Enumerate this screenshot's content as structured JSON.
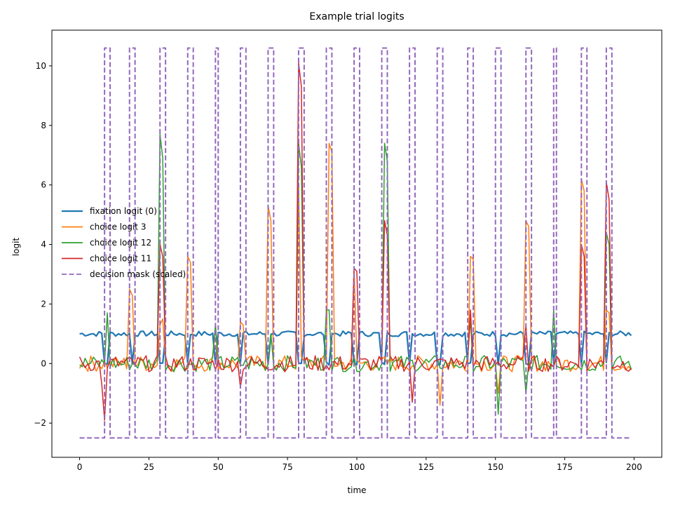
{
  "chart_data": {
    "type": "line",
    "title": "Example trial logits",
    "xlabel": "time",
    "ylabel": "logit",
    "xlim": [
      -10,
      210
    ],
    "ylim": [
      -3.15,
      11.2
    ],
    "xticks": [
      0,
      25,
      50,
      75,
      100,
      125,
      150,
      175,
      200
    ],
    "yticks": [
      -2,
      0,
      2,
      4,
      6,
      8,
      10
    ],
    "ytick_labels": [
      "−2",
      "0",
      "2",
      "4",
      "6",
      "8",
      "10"
    ],
    "grid": false,
    "legend_position": "center-left",
    "x": {
      "start": 0,
      "end": 199,
      "step": 1
    },
    "colors": {
      "fixation": "#1f77b4",
      "choice3": "#ff7f0e",
      "choice12": "#2ca02c",
      "choice11": "#d62728",
      "mask": "#9467bd"
    },
    "series": [
      {
        "name": "fixation logit (0)",
        "color": "#1f77b4",
        "style": "solid",
        "baseline": 1.0,
        "dips": [
          9,
          10,
          19,
          29,
          30,
          39,
          49,
          58,
          68,
          79,
          80,
          89,
          90,
          99,
          100,
          109,
          110,
          119,
          129,
          130,
          140,
          141,
          151,
          161,
          162,
          171,
          181,
          190
        ],
        "dip_value": 0.0
      },
      {
        "name": "choice logit 3",
        "color": "#ff7f0e",
        "style": "solid",
        "spikes": [
          [
            18,
            2.5
          ],
          [
            19,
            2.3
          ],
          [
            29,
            1.3
          ],
          [
            30,
            1.5
          ],
          [
            39,
            3.6
          ],
          [
            40,
            3.4
          ],
          [
            49,
            1.3
          ],
          [
            58,
            1.4
          ],
          [
            59,
            1.3
          ],
          [
            68,
            5.3
          ],
          [
            69,
            4.8
          ],
          [
            79,
            6.0
          ],
          [
            90,
            7.4
          ],
          [
            91,
            7.1
          ],
          [
            99,
            3.2
          ],
          [
            130,
            -1.4
          ],
          [
            141,
            3.6
          ],
          [
            142,
            3.5
          ],
          [
            151,
            -1.0
          ],
          [
            161,
            4.8
          ],
          [
            162,
            4.6
          ],
          [
            181,
            6.2
          ],
          [
            182,
            5.8
          ],
          [
            190,
            1.8
          ],
          [
            191,
            1.7
          ]
        ]
      },
      {
        "name": "choice logit 12",
        "color": "#2ca02c",
        "style": "solid",
        "spikes": [
          [
            10,
            1.7
          ],
          [
            29,
            7.7
          ],
          [
            30,
            6.9
          ],
          [
            49,
            1.3
          ],
          [
            69,
            1.0
          ],
          [
            79,
            7.4
          ],
          [
            80,
            6.6
          ],
          [
            89,
            1.8
          ],
          [
            90,
            1.8
          ],
          [
            110,
            7.4
          ],
          [
            111,
            6.8
          ],
          [
            141,
            1.5
          ],
          [
            151,
            -1.7
          ],
          [
            161,
            -1.0
          ],
          [
            171,
            1.8
          ],
          [
            190,
            4.4
          ],
          [
            191,
            4.0
          ]
        ]
      },
      {
        "name": "choice logit 11",
        "color": "#d62728",
        "style": "solid",
        "spikes": [
          [
            8,
            -0.7
          ],
          [
            9,
            -1.9
          ],
          [
            29,
            4.0
          ],
          [
            30,
            3.6
          ],
          [
            58,
            -0.8
          ],
          [
            79,
            10.1
          ],
          [
            80,
            9.3
          ],
          [
            99,
            3.2
          ],
          [
            100,
            3.1
          ],
          [
            110,
            4.8
          ],
          [
            111,
            4.3
          ],
          [
            120,
            -1.3
          ],
          [
            141,
            1.8
          ],
          [
            161,
            1.3
          ],
          [
            181,
            4.0
          ],
          [
            182,
            3.6
          ],
          [
            190,
            6.1
          ],
          [
            191,
            5.5
          ]
        ]
      },
      {
        "name": "decision mask (scaled)",
        "color": "#9467bd",
        "style": "dashed",
        "low": -2.5,
        "high": 10.6,
        "windows": [
          [
            9,
            10
          ],
          [
            18,
            19
          ],
          [
            29,
            30
          ],
          [
            39,
            40
          ],
          [
            49,
            49
          ],
          [
            58,
            59
          ],
          [
            68,
            69
          ],
          [
            79,
            80
          ],
          [
            89,
            90
          ],
          [
            99,
            100
          ],
          [
            109,
            110
          ],
          [
            119,
            120
          ],
          [
            129,
            130
          ],
          [
            140,
            141
          ],
          [
            150,
            151
          ],
          [
            161,
            162
          ],
          [
            171,
            171
          ],
          [
            181,
            182
          ],
          [
            190,
            191
          ]
        ]
      }
    ]
  }
}
